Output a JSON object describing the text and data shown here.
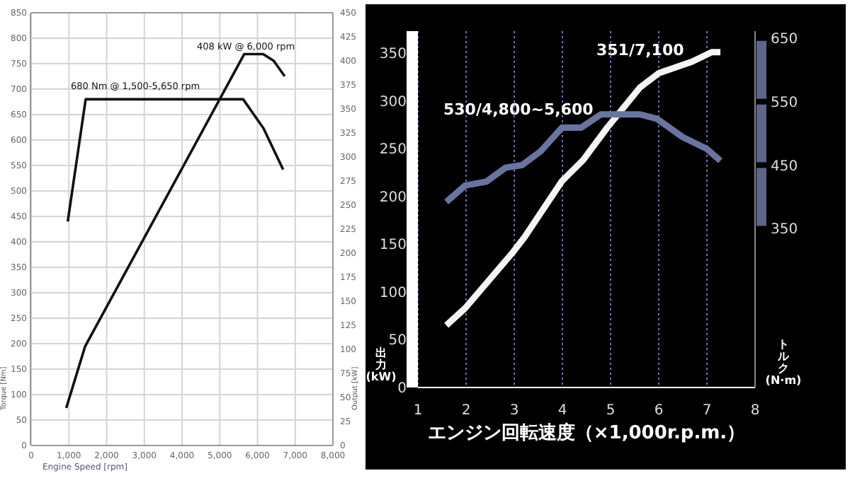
{
  "chart_data": [
    {
      "type": "line",
      "xlabel": "Engine Speed [rpm]",
      "ylabel": "Torque [Nm]",
      "y2label": "Output [kW]",
      "series": [
        {
          "color": "#111111",
          "x": [
            970,
            1445,
            5620,
            6160,
            6680
          ],
          "values": [
            440,
            680,
            680,
            623,
            542
          ]
        },
        {
          "color": "#111111",
          "axis": "y2",
          "x": [
            930,
            1430,
            5650,
            6150,
            6430,
            6720
          ],
          "values": [
            39,
            103,
            407,
            407,
            400,
            384
          ]
        }
      ],
      "xlim": [
        0,
        8000
      ],
      "xticks": [
        0,
        {
          "value": 1000,
          "label": "1,000"
        },
        {
          "value": 2000,
          "label": "2,000"
        },
        {
          "value": 3000,
          "label": "3,000"
        },
        {
          "value": 4000,
          "label": "4,000"
        },
        {
          "value": 5000,
          "label": "5,000"
        },
        {
          "value": 6000,
          "label": "6,000"
        },
        {
          "value": 7000,
          "label": "7,000"
        },
        {
          "value": 8000,
          "label": "8,000"
        }
      ],
      "ylim": [
        0,
        850
      ],
      "yticks": [
        0,
        50,
        100,
        150,
        200,
        250,
        300,
        350,
        400,
        450,
        500,
        550,
        600,
        650,
        700,
        750,
        800,
        850
      ],
      "y2lim": [
        0,
        450
      ],
      "y2ticks": [
        0,
        25,
        50,
        75,
        100,
        125,
        150,
        175,
        200,
        225,
        250,
        275,
        300,
        325,
        350,
        375,
        400,
        425,
        450
      ],
      "grid": true,
      "annotations": [
        "680 Nm @ 1,500-5,650 rpm",
        "408 kW @ 6,000 rpm"
      ]
    },
    {
      "type": "line",
      "xlabel": "エンジン回転速度（×1,000r.p.m.）",
      "ylabel": "出力 (kW)",
      "y2label": "トルク (N·m)",
      "series": [
        {
          "color": "#f4f4f4",
          "x": [
            1.59,
            1.98,
            2.98,
            3.21,
            3.99,
            4.43,
            4.93,
            5.61,
            6.0,
            6.69,
            7.1,
            7.28
          ],
          "values": [
            65,
            83,
            142,
            157,
            216,
            238,
            272,
            314,
            329,
            341,
            351,
            351
          ]
        },
        {
          "color": "#6a74a0",
          "axis": "y2",
          "x": [
            1.59,
            1.98,
            2.42,
            2.82,
            3.16,
            3.55,
            3.99,
            4.39,
            4.8,
            5.6,
            5.96,
            6.5,
            6.99,
            7.28
          ],
          "values": [
            392,
            418,
            424,
            446,
            450,
            472,
            509,
            509,
            530,
            530,
            523,
            494,
            476,
            457
          ]
        }
      ],
      "xlim": [
        1,
        8
      ],
      "xticks": [
        1,
        2,
        3,
        4,
        5,
        6,
        7,
        8
      ],
      "ylim": [
        0,
        373
      ],
      "yticks": [
        0,
        50,
        100,
        150,
        200,
        250,
        300,
        350
      ],
      "y2lim": [
        100,
        661
      ],
      "y2ticks": [
        350,
        450,
        550,
        650
      ],
      "grid": "x",
      "annotations": [
        "530/4,800~5,600",
        "351/7,100"
      ]
    }
  ]
}
